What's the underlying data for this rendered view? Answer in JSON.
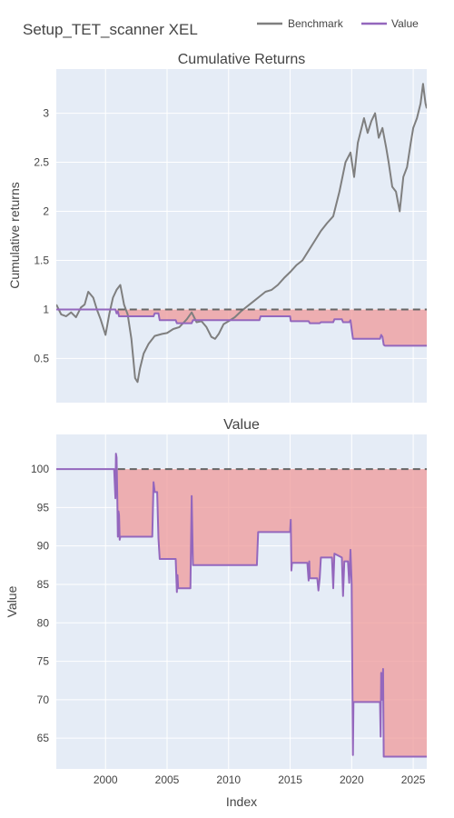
{
  "title": "Setup_TET_scanner XEL",
  "legend": [
    {
      "name": "Benchmark",
      "color": "#7f7f7f"
    },
    {
      "name": "Value",
      "color": "#9467bd"
    }
  ],
  "colors": {
    "plot_bg": "#e5ecf6",
    "grid": "#ffffff",
    "drawdown_fill": "#ef9a9a",
    "drawdown_fill_opacity": 0.75,
    "baseline_dash": "#666666"
  },
  "chart_data": [
    {
      "type": "line",
      "title": "Cumulative Returns",
      "ylabel": "Cumulative returns",
      "xlabel": "",
      "xlim": [
        1996,
        2026.1
      ],
      "ylim": [
        0.05,
        3.45
      ],
      "yticks": [
        0.5,
        1,
        1.5,
        2,
        2.5,
        3
      ],
      "ytick_labels": [
        "0.5",
        "1",
        "1.5",
        "2",
        "2.5",
        "3"
      ],
      "xticks": [
        2000,
        2005,
        2010,
        2015,
        2020,
        2025
      ],
      "xtick_labels": [
        "2000",
        "2005",
        "2010",
        "2015",
        "2020",
        "2025"
      ],
      "baseline": 1,
      "grid": true,
      "series": [
        {
          "name": "Benchmark",
          "color": "#7f7f7f",
          "x": [
            1996.0,
            1996.4,
            1996.8,
            1997.2,
            1997.6,
            1998.0,
            1998.3,
            1998.6,
            1999.0,
            1999.3,
            1999.6,
            2000.0,
            2000.3,
            2000.6,
            2000.9,
            2001.2,
            2001.5,
            2001.8,
            2002.1,
            2002.4,
            2002.6,
            2002.8,
            2003.1,
            2003.5,
            2004.0,
            2004.6,
            2005.0,
            2005.5,
            2006.0,
            2006.6,
            2007.0,
            2007.4,
            2007.8,
            2008.2,
            2008.6,
            2008.9,
            2009.2,
            2009.6,
            2010.0,
            2010.5,
            2011.0,
            2011.5,
            2012.0,
            2012.5,
            2013.0,
            2013.5,
            2014.0,
            2014.5,
            2015.0,
            2015.5,
            2016.0,
            2016.5,
            2017.0,
            2017.5,
            2018.0,
            2018.5,
            2019.0,
            2019.5,
            2019.9,
            2020.2,
            2020.5,
            2020.8,
            2021.0,
            2021.3,
            2021.6,
            2021.9,
            2022.2,
            2022.5,
            2022.8,
            2023.0,
            2023.3,
            2023.6,
            2023.9,
            2024.2,
            2024.5,
            2024.8,
            2025.0,
            2025.3,
            2025.6,
            2025.8,
            2026.0,
            2026.1
          ],
          "y": [
            1.05,
            0.95,
            0.93,
            0.97,
            0.92,
            1.02,
            1.05,
            1.18,
            1.12,
            1.0,
            0.9,
            0.74,
            0.95,
            1.12,
            1.2,
            1.25,
            1.05,
            0.95,
            0.7,
            0.3,
            0.26,
            0.4,
            0.55,
            0.65,
            0.73,
            0.75,
            0.76,
            0.8,
            0.82,
            0.9,
            0.97,
            0.87,
            0.88,
            0.82,
            0.72,
            0.7,
            0.75,
            0.85,
            0.88,
            0.92,
            0.98,
            1.03,
            1.08,
            1.13,
            1.18,
            1.2,
            1.25,
            1.32,
            1.38,
            1.45,
            1.5,
            1.6,
            1.7,
            1.8,
            1.88,
            1.95,
            2.2,
            2.5,
            2.6,
            2.35,
            2.7,
            2.85,
            2.95,
            2.8,
            2.92,
            3.0,
            2.75,
            2.85,
            2.65,
            2.5,
            2.25,
            2.2,
            2.0,
            2.35,
            2.45,
            2.7,
            2.85,
            2.95,
            3.1,
            3.3,
            3.1,
            3.05
          ]
        },
        {
          "name": "Value",
          "color": "#9467bd",
          "x": [
            1996.0,
            2000.8,
            2000.9,
            2001.0,
            2001.1,
            2001.3,
            2003.9,
            2004.0,
            2004.3,
            2004.4,
            2005.7,
            2005.8,
            2005.9,
            2007.0,
            2007.1,
            2007.2,
            2012.5,
            2012.6,
            2015.0,
            2015.05,
            2015.1,
            2016.5,
            2016.6,
            2017.4,
            2017.5,
            2018.5,
            2018.6,
            2019.2,
            2019.3,
            2019.8,
            2019.9,
            2020.1,
            2020.15,
            2022.3,
            2022.4,
            2022.5,
            2022.6,
            2022.7,
            2026.1
          ],
          "y": [
            1.0,
            1.0,
            0.96,
            0.98,
            0.93,
            0.93,
            0.93,
            0.96,
            0.96,
            0.89,
            0.89,
            0.86,
            0.86,
            0.86,
            0.89,
            0.89,
            0.89,
            0.93,
            0.93,
            0.88,
            0.88,
            0.88,
            0.86,
            0.86,
            0.87,
            0.87,
            0.9,
            0.9,
            0.87,
            0.87,
            0.89,
            0.7,
            0.7,
            0.7,
            0.74,
            0.72,
            0.64,
            0.63,
            0.63
          ]
        }
      ]
    },
    {
      "type": "line",
      "title": "Value",
      "ylabel": "Value",
      "xlabel": "Index",
      "xlim": [
        1996,
        2026.1
      ],
      "ylim": [
        61.0,
        104.5
      ],
      "yticks": [
        65,
        70,
        75,
        80,
        85,
        90,
        95,
        100
      ],
      "ytick_labels": [
        "65",
        "70",
        "75",
        "80",
        "85",
        "90",
        "95",
        "100"
      ],
      "xticks": [
        2000,
        2005,
        2010,
        2015,
        2020,
        2025
      ],
      "xtick_labels": [
        "2000",
        "2005",
        "2010",
        "2015",
        "2020",
        "2025"
      ],
      "baseline": 100,
      "grid": true,
      "series": [
        {
          "name": "Value",
          "color": "#9467bd",
          "x": [
            1996.0,
            2000.7,
            2000.8,
            2000.85,
            2000.9,
            2000.95,
            2001.0,
            2001.05,
            2001.1,
            2001.15,
            2001.2,
            2001.3,
            2003.8,
            2003.9,
            2004.0,
            2004.2,
            2004.3,
            2004.4,
            2005.7,
            2005.8,
            2005.85,
            2005.9,
            2006.9,
            2007.0,
            2007.1,
            2007.2,
            2007.25,
            2012.3,
            2012.4,
            2012.5,
            2015.0,
            2015.05,
            2015.1,
            2015.15,
            2016.4,
            2016.5,
            2016.55,
            2016.6,
            2017.2,
            2017.3,
            2017.4,
            2017.5,
            2018.4,
            2018.5,
            2018.6,
            2019.2,
            2019.3,
            2019.4,
            2019.7,
            2019.8,
            2019.9,
            2020.0,
            2020.1,
            2020.15,
            2022.3,
            2022.35,
            2022.4,
            2022.5,
            2022.55,
            2022.6,
            2022.7,
            2026.1
          ],
          "y": [
            100.0,
            100.0,
            96.2,
            102.0,
            101.5,
            97.0,
            91.2,
            94.5,
            94.0,
            90.8,
            91.2,
            91.2,
            91.2,
            98.3,
            97.0,
            97.0,
            91.0,
            88.3,
            88.3,
            84.0,
            86.2,
            84.5,
            84.5,
            96.5,
            87.5,
            87.5,
            87.5,
            87.5,
            91.8,
            91.8,
            91.8,
            93.4,
            86.8,
            87.8,
            87.8,
            85.5,
            88.0,
            85.8,
            85.8,
            84.2,
            85.8,
            88.5,
            88.5,
            84.5,
            89.0,
            88.5,
            83.5,
            88.0,
            88.0,
            85.2,
            89.5,
            85.0,
            62.8,
            69.7,
            69.7,
            65.2,
            73.5,
            70.0,
            74.0,
            62.6,
            62.6,
            62.6
          ]
        }
      ]
    }
  ]
}
